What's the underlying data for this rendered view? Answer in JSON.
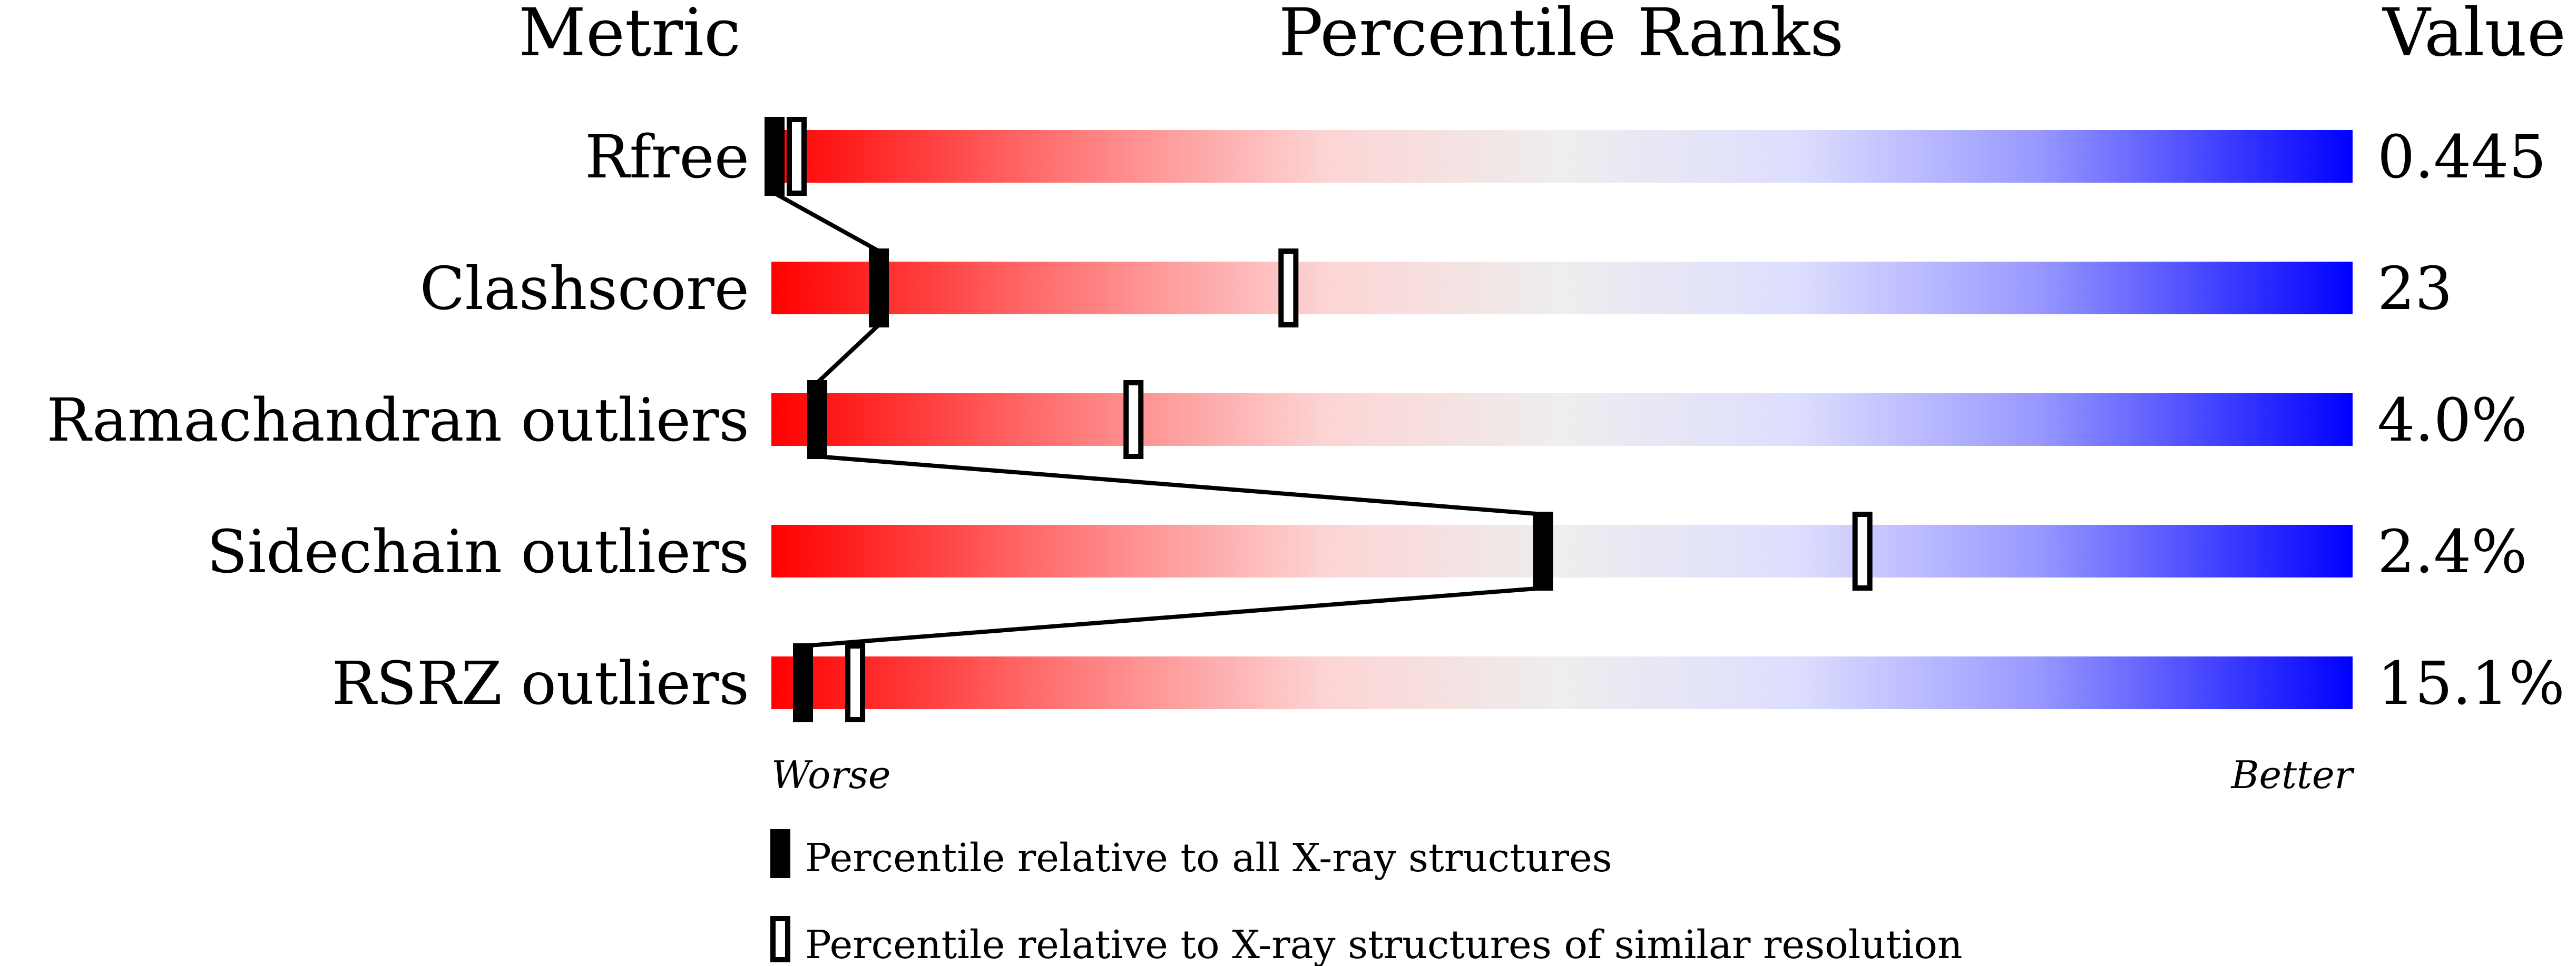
{
  "chart_data": {
    "type": "percentile-slider",
    "headers": {
      "metric": "Metric",
      "ranks": "Percentile Ranks",
      "value": "Value"
    },
    "xlim": [
      0,
      100
    ],
    "axis_labels": {
      "left": "Worse",
      "right": "Better"
    },
    "gradient_colors": [
      "#ff0000",
      "#eeeeee",
      "#0000ff"
    ],
    "metrics": [
      {
        "name": "Rfree",
        "value": "0.445",
        "percentile_all": 0.2,
        "percentile_similar": 1.6
      },
      {
        "name": "Clashscore",
        "value": "23",
        "percentile_all": 6.8,
        "percentile_similar": 32.7
      },
      {
        "name": "Ramachandran outliers",
        "value": "4.0%",
        "percentile_all": 2.9,
        "percentile_similar": 22.9
      },
      {
        "name": "Sidechain outliers",
        "value": "2.4%",
        "percentile_all": 48.8,
        "percentile_similar": 69.0
      },
      {
        "name": "RSRZ outliers",
        "value": "15.1%",
        "percentile_all": 2.0,
        "percentile_similar": 5.3
      }
    ],
    "legend": {
      "all": "Percentile relative to all X-ray structures",
      "similar": "Percentile relative to X-ray structures of similar resolution"
    }
  }
}
